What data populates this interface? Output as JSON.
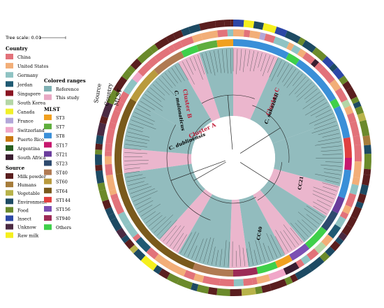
{
  "tree_scale_label": "Tree scale: 0.01",
  "legend": {
    "country": {
      "title": "Country",
      "items": [
        {
          "label": "China",
          "color": "#e2727a"
        },
        {
          "label": "United States",
          "color": "#f2ae78"
        },
        {
          "label": "Germany",
          "color": "#8fc3c3"
        },
        {
          "label": "Jordan",
          "color": "#1f5a73"
        },
        {
          "label": "Singapore",
          "color": "#8a1422"
        },
        {
          "label": "South Korea",
          "color": "#b4d6a6"
        },
        {
          "label": "Canada",
          "color": "#f1f02a"
        },
        {
          "label": "France",
          "color": "#b3a7d9"
        },
        {
          "label": "Switzerland",
          "color": "#f0a6c8"
        },
        {
          "label": "Puerto Rico",
          "color": "#c9780e"
        },
        {
          "label": "Argentina",
          "color": "#275f1f"
        },
        {
          "label": "South Africa",
          "color": "#3a1d30"
        }
      ]
    },
    "source": {
      "title": "Source",
      "items": [
        {
          "label": "Milk powder",
          "color": "#5a1e1e"
        },
        {
          "label": "Humans",
          "color": "#a67c3a"
        },
        {
          "label": "Vegetable",
          "color": "#b8b34a"
        },
        {
          "label": "Environment",
          "color": "#1d4a63"
        },
        {
          "label": "Food",
          "color": "#6b8a2b"
        },
        {
          "label": "Insect",
          "color": "#2c47a6"
        },
        {
          "label": "Unknow",
          "color": "#4a2a42"
        },
        {
          "label": "Raw milk",
          "color": "#f5ef1e"
        }
      ]
    },
    "colored_ranges": {
      "title": "Colored ranges",
      "items": [
        {
          "label": "Reference",
          "color": "#7fb0b3"
        },
        {
          "label": "This study",
          "color": "#e8a9c4"
        }
      ]
    },
    "mlst": {
      "title": "MLST",
      "items": [
        {
          "label": "ST3",
          "color": "#f0a020"
        },
        {
          "label": "ST7",
          "color": "#5fae3d"
        },
        {
          "label": "ST8",
          "color": "#3a8fd8"
        },
        {
          "label": "ST17",
          "color": "#c7186e"
        },
        {
          "label": "ST21",
          "color": "#6a3c9c"
        },
        {
          "label": "ST23",
          "color": "#2d4a6e"
        },
        {
          "label": "ST40",
          "color": "#b07a52"
        },
        {
          "label": "ST60",
          "color": "#b99a3c"
        },
        {
          "label": "ST64",
          "color": "#7a5a1c"
        },
        {
          "label": "ST144",
          "color": "#e04040"
        },
        {
          "label": "ST156",
          "color": "#7b4fb3"
        },
        {
          "label": "ST940",
          "color": "#9c2a56"
        },
        {
          "label": "Others",
          "color": "#3fd04a"
        }
      ]
    }
  },
  "ring_labels": {
    "source": "Source",
    "country": "Country",
    "mlst": "MLST"
  },
  "clusters": [
    {
      "label": "Cluster A",
      "species": "C. dublinensis"
    },
    {
      "label": "Cluster B",
      "species": "C. malonaticus"
    },
    {
      "label": "Cluster C",
      "species": "C. sakazakii"
    }
  ],
  "cc_labels": [
    "CC21",
    "CC40"
  ]
}
